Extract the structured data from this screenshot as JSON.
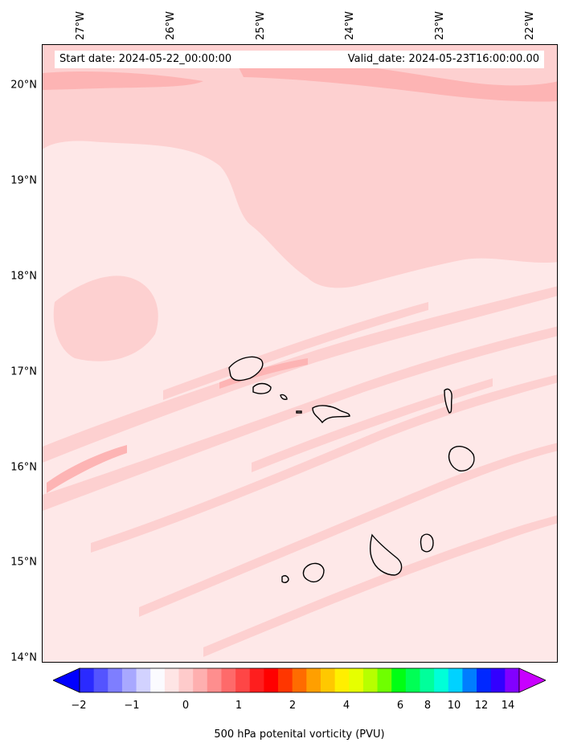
{
  "map": {
    "start_date": "Start date: 2024-05-22_00:00:00",
    "valid_date": "Valid_date: 2024-05-23T16:00:00.00",
    "lon_labels": [
      "27°W",
      "26°W",
      "25°W",
      "24°W",
      "23°W",
      "22°W"
    ],
    "lat_labels": [
      "20°N",
      "19°N",
      "18°N",
      "17°N",
      "16°N",
      "15°N",
      "14°N"
    ],
    "colorbar_ticks": [
      "−2",
      "−1",
      "0",
      "1",
      "2",
      "4",
      "6",
      "8",
      "10",
      "12",
      "14"
    ],
    "colorbar_label": "500 hPa potenital vorticity (PVU)",
    "colors": {
      "background_pink": "#fee8e8",
      "light_pink": "#fdd0d0",
      "mid_pink": "#fdb4b4",
      "coastline": "#000000"
    },
    "colorbar_colors": [
      "#0000ff",
      "#2a2aff",
      "#5454ff",
      "#7e7eff",
      "#a8a8ff",
      "#d2d2ff",
      "#fbfbff",
      "#fee5e5",
      "#fecbcb",
      "#feafaf",
      "#fe8e8e",
      "#fe6a6a",
      "#fe4646",
      "#fe1e1e",
      "#ff0000",
      "#ff3600",
      "#ff6c00",
      "#ff9f00",
      "#ffc800",
      "#ffef00",
      "#e6ff00",
      "#b7ff00",
      "#6fff00",
      "#00ff14",
      "#00ff55",
      "#00ff9b",
      "#00ffd8",
      "#00d2ff",
      "#007dff",
      "#0028ff",
      "#3200ff",
      "#8200ff",
      "#c800ff"
    ]
  }
}
